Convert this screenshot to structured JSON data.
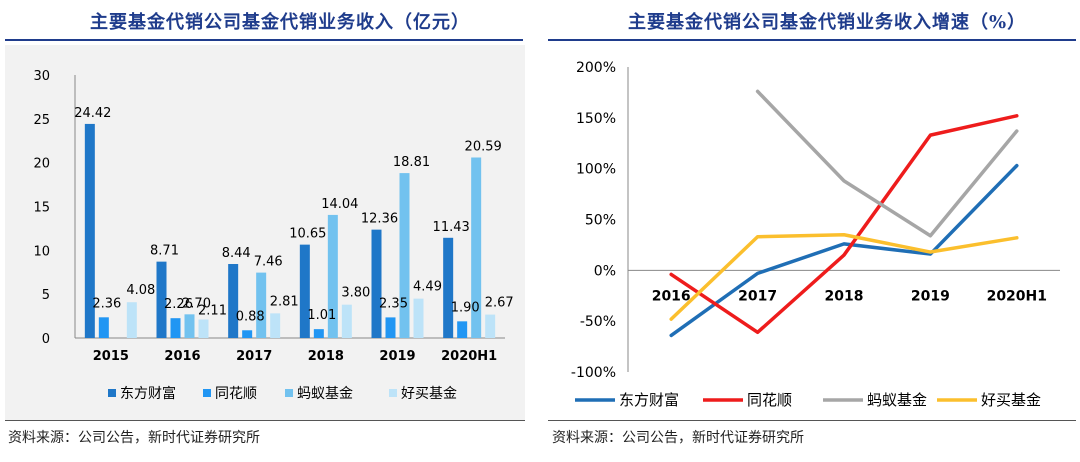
{
  "left_source": "资料来源：公司公告，新时代证券研究所",
  "right_source": "资料来源：公司公告，新时代证券研究所",
  "colors": {
    "title": "#1f3c8c",
    "dongfang": "#1f77c8",
    "tonghuashun": "#2196f3",
    "mayi": "#72c2ef",
    "haomai": "#bde3f8",
    "line_dongfang": "#1f6eb5",
    "line_tonghuashun": "#ee1c1c",
    "line_mayi": "#a6a6a6",
    "line_haomai": "#fbbf2d"
  },
  "chart_data": [
    {
      "type": "bar",
      "title": "主要基金代销公司基金代销业务收入（亿元）",
      "categories": [
        "2015",
        "2016",
        "2017",
        "2018",
        "2019",
        "2020H1"
      ],
      "ylim": [
        0,
        30
      ],
      "yticks": [
        "0",
        "5",
        "10",
        "15",
        "20",
        "25",
        "30"
      ],
      "series": [
        {
          "name": "东方财富",
          "values": [
            24.42,
            8.71,
            8.44,
            10.65,
            12.36,
            11.43
          ],
          "labels": [
            "24.42",
            "8.71",
            "8.44",
            "10.65",
            "12.36",
            "11.43"
          ]
        },
        {
          "name": "同花顺",
          "values": [
            2.36,
            2.26,
            0.88,
            1.01,
            2.35,
            1.9
          ],
          "labels": [
            "2.36",
            "2.26",
            "0.88",
            "1.01",
            "2.35",
            "1.90"
          ]
        },
        {
          "name": "蚂蚁基金",
          "values": [
            null,
            2.7,
            7.46,
            14.04,
            18.81,
            20.59
          ],
          "labels": [
            "",
            "2.70",
            "7.46",
            "14.04",
            "18.81",
            "20.59"
          ]
        },
        {
          "name": "好买基金",
          "values": [
            4.08,
            2.11,
            2.81,
            3.8,
            4.49,
            2.67
          ],
          "labels": [
            "4.08",
            "2.11",
            "2.81",
            "3.80",
            "4.49",
            "2.67"
          ]
        }
      ],
      "legend": "bottom"
    },
    {
      "type": "line",
      "title": "主要基金代销公司基金代销业务收入增速（%）",
      "categories": [
        "2016",
        "2017",
        "2018",
        "2019",
        "2020H1"
      ],
      "ylim": [
        -100,
        200
      ],
      "yticks": [
        "-100%",
        "-50%",
        "0%",
        "50%",
        "100%",
        "150%",
        "200%"
      ],
      "series": [
        {
          "name": "东方财富",
          "values": [
            -64,
            -3,
            26,
            16,
            103
          ]
        },
        {
          "name": "同花顺",
          "values": [
            -4,
            -61,
            15,
            133,
            152
          ]
        },
        {
          "name": "蚂蚁基金",
          "values": [
            null,
            176,
            88,
            34,
            137
          ]
        },
        {
          "name": "好买基金",
          "values": [
            -48,
            33,
            35,
            18,
            32
          ]
        }
      ],
      "legend": "bottom"
    }
  ]
}
